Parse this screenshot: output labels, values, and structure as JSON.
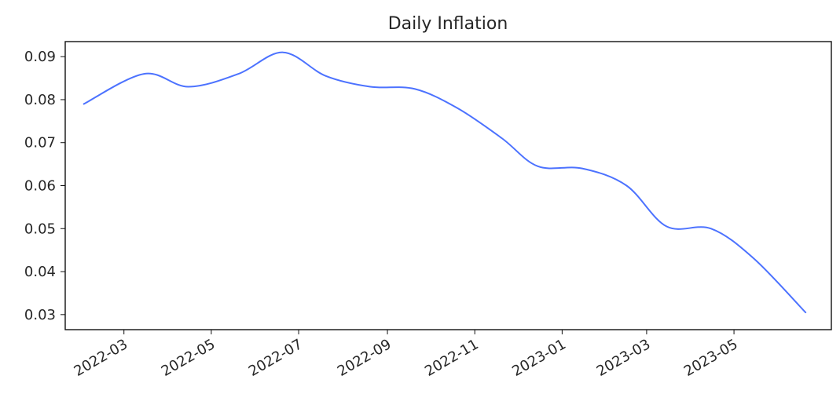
{
  "chart_data": {
    "type": "line",
    "title": "Daily Inflation",
    "xlabel": "",
    "ylabel": "",
    "x_ticks": [
      "2022-03",
      "2022-05",
      "2022-07",
      "2022-09",
      "2022-11",
      "2023-01",
      "2023-03",
      "2023-05"
    ],
    "y_ticks": [
      "0.03",
      "0.04",
      "0.05",
      "0.06",
      "0.07",
      "0.08",
      "0.09"
    ],
    "xlim": [
      "2022-01-19",
      "2023-07-08"
    ],
    "ylim": [
      0.0265,
      0.0935
    ],
    "grid": false,
    "legend": "none",
    "series": [
      {
        "color": "#4c72ff",
        "x": [
          "2022-02-01",
          "2022-03-15",
          "2022-04-15",
          "2022-05-20",
          "2022-06-20",
          "2022-07-20",
          "2022-08-20",
          "2022-09-20",
          "2022-10-20",
          "2022-11-20",
          "2022-12-15",
          "2023-01-15",
          "2023-02-15",
          "2023-03-15",
          "2023-04-15",
          "2023-05-15",
          "2023-06-20"
        ],
        "values": [
          0.079,
          0.086,
          0.083,
          0.086,
          0.091,
          0.0855,
          0.083,
          0.0825,
          0.078,
          0.071,
          0.0645,
          0.064,
          0.06,
          0.0505,
          0.05,
          0.043,
          0.0305
        ]
      }
    ]
  }
}
